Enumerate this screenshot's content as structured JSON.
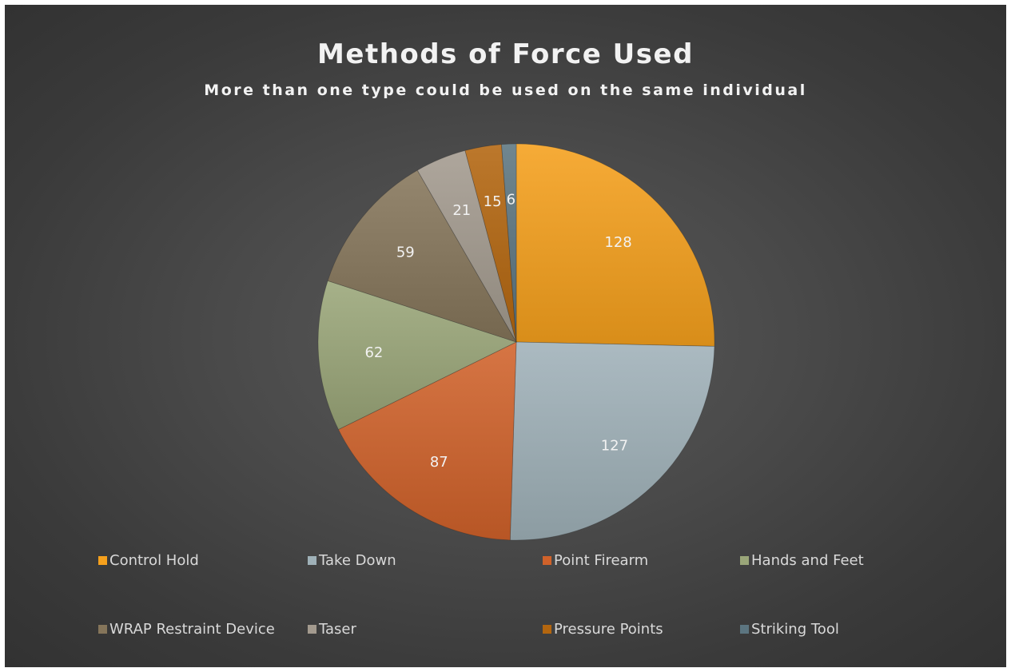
{
  "chart_data": {
    "type": "pie",
    "title": "Methods of Force Used",
    "subtitle": "More than one type could be used on the same individual",
    "legend_position": "bottom",
    "slices": [
      {
        "label": "Control Hold",
        "value": 128,
        "color": "#f5a01c"
      },
      {
        "label": "Take Down",
        "value": 127,
        "color": "#9fb1b8"
      },
      {
        "label": "Point Firearm",
        "value": 87,
        "color": "#d0622a"
      },
      {
        "label": "Hands and Feet",
        "value": 62,
        "color": "#9aa679"
      },
      {
        "label": "WRAP Restraint Device",
        "value": 59,
        "color": "#85755a"
      },
      {
        "label": "Taser",
        "value": 21,
        "color": "#a39a8e"
      },
      {
        "label": "Pressure Points",
        "value": 15,
        "color": "#b3660f"
      },
      {
        "label": "Striking Tool",
        "value": 6,
        "color": "#5c7580"
      }
    ]
  }
}
